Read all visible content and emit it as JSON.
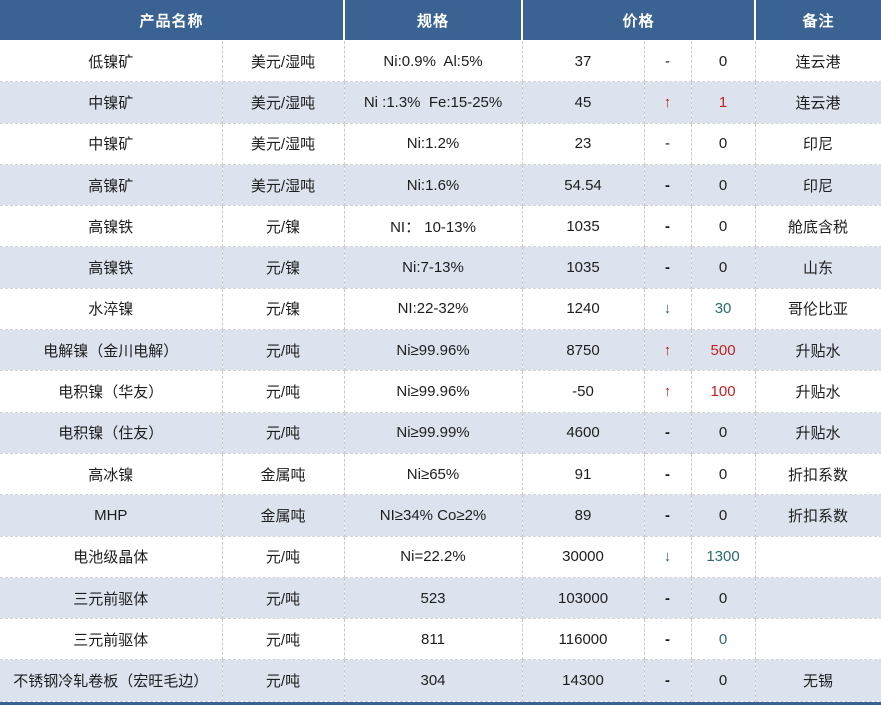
{
  "colors": {
    "header_bg": "#3a6292",
    "stripe": "#dce3ee",
    "up_red": "#c32222",
    "down_teal": "#2a6b70"
  },
  "table": {
    "headers": {
      "product": "产品名称",
      "spec": "规格",
      "price": "价格",
      "note": "备注"
    },
    "rows": [
      {
        "name": "低镍矿",
        "unit": "美元/湿吨",
        "spec": "Ni:0.9%  Al:5%",
        "price": "37",
        "dir": "-",
        "dir_style": "light",
        "change": "0",
        "change_style": "default",
        "note": "连云港"
      },
      {
        "name": "中镍矿",
        "unit": "美元/湿吨",
        "spec": "Ni :1.3%  Fe:15-25%",
        "price": "45",
        "dir": "↑",
        "dir_style": "up",
        "change": "1",
        "change_style": "red",
        "note": "连云港"
      },
      {
        "name": "中镍矿",
        "unit": "美元/湿吨",
        "spec": "Ni:1.2%",
        "price": "23",
        "dir": "-",
        "dir_style": "light",
        "change": "0",
        "change_style": "default",
        "note": "印尼"
      },
      {
        "name": "高镍矿",
        "unit": "美元/湿吨",
        "spec": "Ni:1.6%",
        "price": "54.54",
        "dir": "-",
        "dir_style": "flat",
        "change": "0",
        "change_style": "default",
        "note": "印尼"
      },
      {
        "name": "高镍铁",
        "unit": "元/镍",
        "spec": "NI： 10-13%",
        "price": "1035",
        "dir": "-",
        "dir_style": "flat",
        "change": "0",
        "change_style": "default",
        "note": "舱底含税"
      },
      {
        "name": "高镍铁",
        "unit": "元/镍",
        "spec": "Ni:7-13%",
        "price": "1035",
        "dir": "-",
        "dir_style": "flat",
        "change": "0",
        "change_style": "default",
        "note": "山东"
      },
      {
        "name": "水淬镍",
        "unit": "元/镍",
        "spec": "NI:22-32%",
        "price": "1240",
        "dir": "↓",
        "dir_style": "down",
        "change": "30",
        "change_style": "teal",
        "note": "哥伦比亚"
      },
      {
        "name": "电解镍（金川电解）",
        "unit": "元/吨",
        "spec": "Ni≥99.96%",
        "price": "8750",
        "dir": "↑",
        "dir_style": "up",
        "change": "500",
        "change_style": "red",
        "note": "升贴水"
      },
      {
        "name": "电积镍（华友）",
        "unit": "元/吨",
        "spec": "Ni≥99.96%",
        "price": "-50",
        "dir": "↑",
        "dir_style": "up",
        "change": "100",
        "change_style": "red",
        "note": "升贴水"
      },
      {
        "name": "电积镍（住友）",
        "unit": "元/吨",
        "spec": "Ni≥99.99%",
        "price": "4600",
        "dir": "-",
        "dir_style": "flat",
        "change": "0",
        "change_style": "default",
        "note": "升贴水"
      },
      {
        "name": "高冰镍",
        "unit": "金属吨",
        "spec": "Ni≥65%",
        "price": "91",
        "dir": "-",
        "dir_style": "flat",
        "change": "0",
        "change_style": "default",
        "note": "折扣系数"
      },
      {
        "name": "MHP",
        "unit": "金属吨",
        "spec": "NI≥34% Co≥2%",
        "price": "89",
        "dir": "-",
        "dir_style": "flat",
        "change": "0",
        "change_style": "default",
        "note": "折扣系数"
      },
      {
        "name": "电池级晶体",
        "unit": "元/吨",
        "spec": "Ni=22.2%",
        "price": "30000",
        "dir": "↓",
        "dir_style": "down",
        "change": "1300",
        "change_style": "teal",
        "note": ""
      },
      {
        "name": "三元前驱体",
        "unit": "元/吨",
        "spec": "523",
        "price": "103000",
        "dir": "-",
        "dir_style": "flat",
        "change": "0",
        "change_style": "default",
        "note": ""
      },
      {
        "name": "三元前驱体",
        "unit": "元/吨",
        "spec": "811",
        "price": "116000",
        "dir": "-",
        "dir_style": "flat",
        "change": "0",
        "change_style": "teal",
        "note": ""
      },
      {
        "name": "不锈钢冷轧卷板（宏旺毛边）",
        "unit": "元/吨",
        "spec": "304",
        "price": "14300",
        "dir": "-",
        "dir_style": "flat",
        "change": "0",
        "change_style": "default",
        "note": "无锡"
      }
    ]
  }
}
